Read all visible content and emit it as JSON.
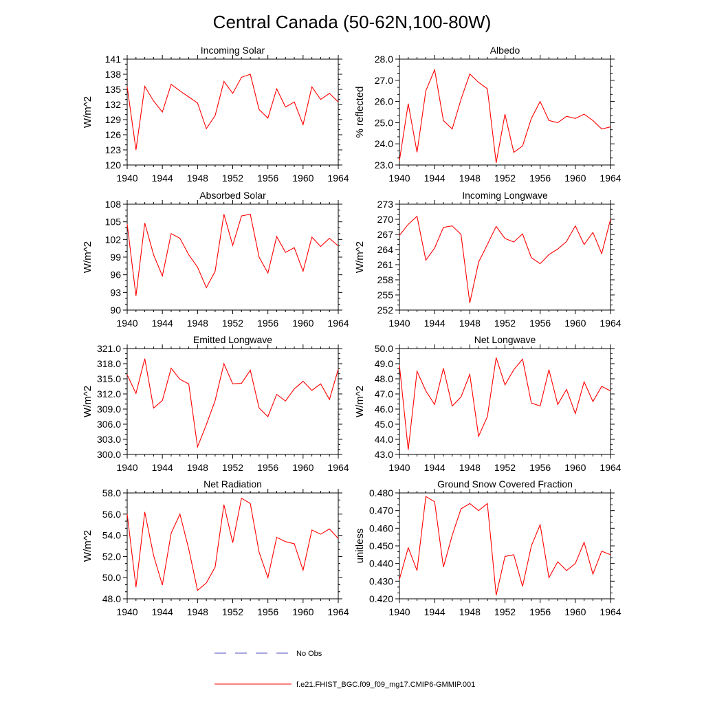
{
  "figure": {
    "title": "Central Canada (50-62N,100-80W)",
    "line_color": "#ff0000",
    "obs_color": "#4f4fbf",
    "legend": [
      {
        "label": "No Obs",
        "style": "dashed"
      },
      {
        "label": "f.e21.FHIST_BGC.f09_f09_mg17.CMIP6-GMMIP.001",
        "style": "solid"
      }
    ]
  },
  "chart_data": [
    {
      "type": "line",
      "title": "Incoming Solar",
      "ylabel": "W/m^2",
      "xlabel": "",
      "xlim": [
        1940,
        1964
      ],
      "ylim": [
        120,
        141
      ],
      "yticks": [
        120,
        123,
        126,
        129,
        132,
        135,
        138,
        141
      ],
      "ytick_decimals": 0,
      "xticks": [
        1940,
        1944,
        1948,
        1952,
        1956,
        1960,
        1964
      ],
      "x": [
        1940,
        1941,
        1942,
        1943,
        1944,
        1945,
        1946,
        1947,
        1948,
        1949,
        1950,
        1951,
        1952,
        1953,
        1954,
        1955,
        1956,
        1957,
        1958,
        1959,
        1960,
        1961,
        1962,
        1963,
        1964
      ],
      "y": [
        135.5,
        123.0,
        135.6,
        132.7,
        130.5,
        136.0,
        134.7,
        133.5,
        132.3,
        127.2,
        129.8,
        136.6,
        134.2,
        137.4,
        138.0,
        131.0,
        129.3,
        135.1,
        131.5,
        132.5,
        128.0,
        135.5,
        133.0,
        134.2,
        132.5
      ]
    },
    {
      "type": "line",
      "title": "Albedo",
      "ylabel": "% reflected",
      "xlabel": "",
      "xlim": [
        1940,
        1964
      ],
      "ylim": [
        23,
        28
      ],
      "yticks": [
        23,
        24,
        25,
        26,
        27,
        28
      ],
      "ytick_decimals": 1,
      "xticks": [
        1940,
        1944,
        1948,
        1952,
        1956,
        1960,
        1964
      ],
      "x": [
        1940,
        1941,
        1942,
        1943,
        1944,
        1945,
        1946,
        1947,
        1948,
        1949,
        1950,
        1951,
        1952,
        1953,
        1954,
        1955,
        1956,
        1957,
        1958,
        1959,
        1960,
        1961,
        1962,
        1963,
        1964
      ],
      "y": [
        23.2,
        25.9,
        23.6,
        26.5,
        27.5,
        25.1,
        24.7,
        26.1,
        27.3,
        26.9,
        26.6,
        23.1,
        25.4,
        23.6,
        23.9,
        25.2,
        26.0,
        25.1,
        25.0,
        25.3,
        25.2,
        25.4,
        25.1,
        24.7,
        24.8
      ]
    },
    {
      "type": "line",
      "title": "Absorbed Solar",
      "ylabel": "W/m^2",
      "xlabel": "",
      "xlim": [
        1940,
        1964
      ],
      "ylim": [
        90,
        108
      ],
      "yticks": [
        90,
        93,
        96,
        99,
        102,
        105,
        108
      ],
      "ytick_decimals": 0,
      "xticks": [
        1940,
        1944,
        1948,
        1952,
        1956,
        1960,
        1964
      ],
      "x": [
        1940,
        1941,
        1942,
        1943,
        1944,
        1945,
        1946,
        1947,
        1948,
        1949,
        1950,
        1951,
        1952,
        1953,
        1954,
        1955,
        1956,
        1957,
        1958,
        1959,
        1960,
        1961,
        1962,
        1963,
        1964
      ],
      "y": [
        104.6,
        92.4,
        104.8,
        99.4,
        95.8,
        103.0,
        102.2,
        99.4,
        97.3,
        93.8,
        96.6,
        106.3,
        101.0,
        106.0,
        106.3,
        99.0,
        96.3,
        102.5,
        99.8,
        100.6,
        96.6,
        102.4,
        100.8,
        102.2,
        100.9
      ]
    },
    {
      "type": "line",
      "title": "Incoming Longwave",
      "ylabel": "W/m^2",
      "xlabel": "",
      "xlim": [
        1940,
        1964
      ],
      "ylim": [
        252,
        273
      ],
      "yticks": [
        252,
        255,
        258,
        261,
        264,
        267,
        270,
        273
      ],
      "ytick_decimals": 0,
      "xticks": [
        1940,
        1944,
        1948,
        1952,
        1956,
        1960,
        1964
      ],
      "x": [
        1940,
        1941,
        1942,
        1943,
        1944,
        1945,
        1946,
        1947,
        1948,
        1949,
        1950,
        1951,
        1952,
        1953,
        1954,
        1955,
        1956,
        1957,
        1958,
        1959,
        1960,
        1961,
        1962,
        1963,
        1964
      ],
      "y": [
        266.8,
        269.0,
        270.6,
        261.9,
        264.3,
        268.4,
        268.7,
        267.0,
        253.4,
        261.5,
        265.0,
        268.6,
        266.2,
        265.5,
        267.1,
        262.4,
        261.2,
        263.0,
        264.1,
        265.6,
        268.7,
        265.0,
        267.4,
        263.2,
        270.0
      ]
    },
    {
      "type": "line",
      "title": "Emitted Longwave",
      "ylabel": "W/m^2",
      "xlabel": "",
      "xlim": [
        1940,
        1964
      ],
      "ylim": [
        300,
        321
      ],
      "yticks": [
        300,
        303,
        306,
        309,
        312,
        315,
        318,
        321
      ],
      "ytick_decimals": 1,
      "xticks": [
        1940,
        1944,
        1948,
        1952,
        1956,
        1960,
        1964
      ],
      "x": [
        1940,
        1941,
        1942,
        1943,
        1944,
        1945,
        1946,
        1947,
        1948,
        1949,
        1950,
        1951,
        1952,
        1953,
        1954,
        1955,
        1956,
        1957,
        1958,
        1959,
        1960,
        1961,
        1962,
        1963,
        1964
      ],
      "y": [
        315.8,
        312.1,
        319.0,
        309.2,
        310.7,
        317.1,
        314.9,
        314.0,
        301.5,
        305.9,
        310.7,
        318.0,
        314.0,
        314.1,
        316.7,
        309.2,
        307.5,
        311.9,
        310.6,
        313.0,
        314.5,
        312.7,
        314.0,
        310.9,
        316.9
      ]
    },
    {
      "type": "line",
      "title": "Net Longwave",
      "ylabel": "W/m^2",
      "xlabel": "",
      "xlim": [
        1940,
        1964
      ],
      "ylim": [
        43,
        50
      ],
      "yticks": [
        43,
        44,
        45,
        46,
        47,
        48,
        49,
        50
      ],
      "ytick_decimals": 1,
      "xticks": [
        1940,
        1944,
        1948,
        1952,
        1956,
        1960,
        1964
      ],
      "x": [
        1940,
        1941,
        1942,
        1943,
        1944,
        1945,
        1946,
        1947,
        1948,
        1949,
        1950,
        1951,
        1952,
        1953,
        1954,
        1955,
        1956,
        1957,
        1958,
        1959,
        1960,
        1961,
        1962,
        1963,
        1964
      ],
      "y": [
        48.9,
        43.3,
        48.5,
        47.2,
        46.3,
        48.7,
        46.2,
        46.8,
        48.3,
        44.2,
        45.5,
        49.4,
        47.6,
        48.6,
        49.3,
        46.4,
        46.2,
        48.6,
        46.3,
        47.3,
        45.7,
        47.8,
        46.5,
        47.5,
        47.2
      ]
    },
    {
      "type": "line",
      "title": "Net Radiation",
      "ylabel": "W/m^2",
      "xlabel": "",
      "xlim": [
        1940,
        1964
      ],
      "ylim": [
        48,
        58
      ],
      "yticks": [
        48,
        50,
        52,
        54,
        56,
        58
      ],
      "ytick_decimals": 1,
      "xticks": [
        1940,
        1944,
        1948,
        1952,
        1956,
        1960,
        1964
      ],
      "x": [
        1940,
        1941,
        1942,
        1943,
        1944,
        1945,
        1946,
        1947,
        1948,
        1949,
        1950,
        1951,
        1952,
        1953,
        1954,
        1955,
        1956,
        1957,
        1958,
        1959,
        1960,
        1961,
        1962,
        1963,
        1964
      ],
      "y": [
        56.0,
        49.1,
        56.2,
        52.1,
        49.3,
        54.2,
        56.0,
        52.7,
        48.8,
        49.5,
        51.0,
        56.9,
        53.3,
        57.5,
        57.0,
        52.4,
        50.0,
        53.8,
        53.4,
        53.2,
        50.7,
        54.5,
        54.1,
        54.6,
        53.7
      ]
    },
    {
      "type": "line",
      "title": "Ground Snow Covered Fraction",
      "ylabel": "unitless",
      "xlabel": "",
      "xlim": [
        1940,
        1964
      ],
      "ylim": [
        0.42,
        0.48
      ],
      "yticks": [
        0.42,
        0.43,
        0.44,
        0.45,
        0.46,
        0.47,
        0.48
      ],
      "ytick_decimals": 3,
      "xticks": [
        1940,
        1944,
        1948,
        1952,
        1956,
        1960,
        1964
      ],
      "x": [
        1940,
        1941,
        1942,
        1943,
        1944,
        1945,
        1946,
        1947,
        1948,
        1949,
        1950,
        1951,
        1952,
        1953,
        1954,
        1955,
        1956,
        1957,
        1958,
        1959,
        1960,
        1961,
        1962,
        1963,
        1964
      ],
      "y": [
        0.431,
        0.449,
        0.436,
        0.478,
        0.475,
        0.438,
        0.456,
        0.471,
        0.474,
        0.47,
        0.474,
        0.422,
        0.444,
        0.445,
        0.427,
        0.45,
        0.462,
        0.432,
        0.441,
        0.436,
        0.44,
        0.452,
        0.434,
        0.447,
        0.445
      ]
    }
  ]
}
